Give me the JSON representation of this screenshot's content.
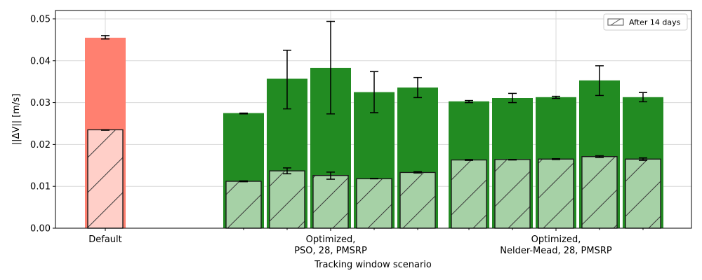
{
  "chart_data": {
    "type": "bar",
    "xlabel": "Tracking window scenario",
    "ylabel": "||ΔV|| [m/s]",
    "ylim": [
      0,
      0.052
    ],
    "yticks": [
      0.0,
      0.01,
      0.02,
      0.03,
      0.04,
      0.05
    ],
    "ytick_labels": [
      "0.00",
      "0.01",
      "0.02",
      "0.03",
      "0.04",
      "0.05"
    ],
    "grid": true,
    "legend": {
      "placement": "top-right",
      "entries": [
        "After 14 days"
      ]
    },
    "categories": [
      {
        "label": "Default"
      },
      {
        "label": "Optimized,\nPSO, 28, PMSRP"
      },
      {
        "label": "Optimized,\nNelder-Mead, 28, PMSRP"
      }
    ],
    "colors": {
      "default_total": "#ff8070",
      "default_after": "#ffcfc8",
      "optimized_total": "#228b22",
      "optimized_after": "#a6d1a6",
      "edge": "#1a1a1a",
      "grid": "#d8d8d8"
    },
    "bars": [
      {
        "group": 0,
        "total": 0.0455,
        "total_err": [
          0.0452,
          0.046
        ],
        "after": 0.0235,
        "after_err": [
          0.0234,
          0.0235
        ]
      },
      {
        "group": 1,
        "total": 0.0275,
        "total_err": [
          0.0273,
          0.0275
        ],
        "after": 0.0112,
        "after_err": [
          0.0111,
          0.0113
        ]
      },
      {
        "group": 1,
        "total": 0.0357,
        "total_err": [
          0.0285,
          0.0425
        ],
        "after": 0.0137,
        "after_err": [
          0.013,
          0.0144
        ]
      },
      {
        "group": 1,
        "total": 0.0383,
        "total_err": [
          0.0273,
          0.0494
        ],
        "after": 0.0126,
        "after_err": [
          0.0117,
          0.0134
        ]
      },
      {
        "group": 1,
        "total": 0.0325,
        "total_err": [
          0.0276,
          0.0374
        ],
        "after": 0.0118,
        "after_err": [
          0.0118,
          0.0119
        ]
      },
      {
        "group": 1,
        "total": 0.0336,
        "total_err": [
          0.0312,
          0.036
        ],
        "after": 0.0133,
        "after_err": [
          0.0132,
          0.0135
        ]
      },
      {
        "group": 2,
        "total": 0.0303,
        "total_err": [
          0.03,
          0.0305
        ],
        "after": 0.0163,
        "after_err": [
          0.0162,
          0.0164
        ]
      },
      {
        "group": 2,
        "total": 0.0311,
        "total_err": [
          0.03,
          0.0322
        ],
        "after": 0.0164,
        "after_err": [
          0.0163,
          0.0164
        ]
      },
      {
        "group": 2,
        "total": 0.0313,
        "total_err": [
          0.031,
          0.0315
        ],
        "after": 0.0165,
        "after_err": [
          0.0164,
          0.0166
        ]
      },
      {
        "group": 2,
        "total": 0.0353,
        "total_err": [
          0.0317,
          0.0388
        ],
        "after": 0.0171,
        "after_err": [
          0.0169,
          0.0173
        ]
      },
      {
        "group": 2,
        "total": 0.0313,
        "total_err": [
          0.0302,
          0.0324
        ],
        "after": 0.0165,
        "after_err": [
          0.0162,
          0.0168
        ]
      }
    ]
  }
}
